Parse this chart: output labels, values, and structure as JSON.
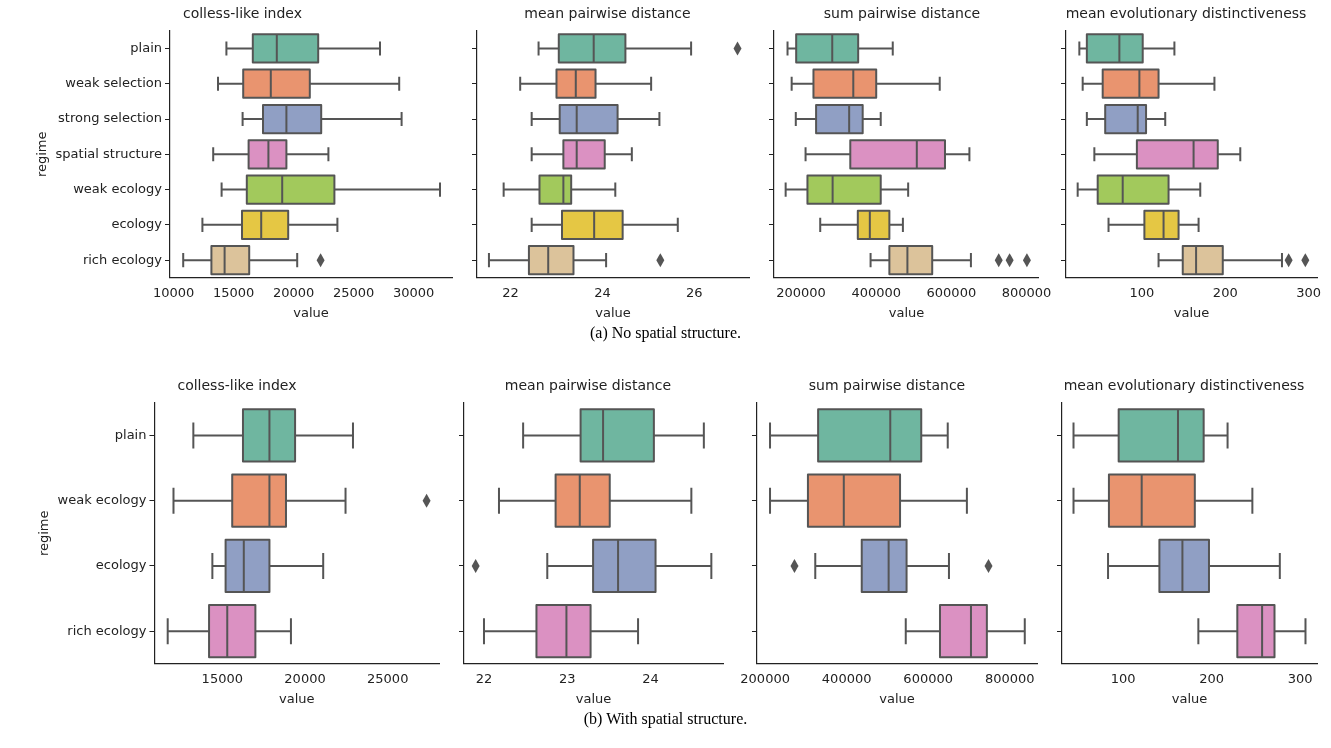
{
  "chart_data": [
    {
      "type": "box",
      "orientation": "horizontal",
      "title": "colless-like index",
      "xlabel": "value",
      "ylabel": "regime",
      "categories": [
        "plain",
        "weak selection",
        "strong selection",
        "spatial structure",
        "weak ecology",
        "ecology",
        "rich ecology"
      ],
      "colors": [
        "#6fb6a0",
        "#e9946f",
        "#909fc4",
        "#db91c2",
        "#a2c95c",
        "#e5c744",
        "#dcc39b"
      ],
      "xlim": [
        9700,
        33200
      ],
      "xticks": [
        10000,
        15000,
        20000,
        25000,
        30000
      ],
      "annotations": [
        "(a) No spatial structure."
      ],
      "boxes": [
        {
          "low": 14400,
          "q1": 16600,
          "median": 18600,
          "q3": 22050,
          "high": 27200
        },
        {
          "low": 13700,
          "q1": 15800,
          "median": 18100,
          "q3": 21350,
          "high": 28800
        },
        {
          "low": 15750,
          "q1": 17450,
          "median": 19400,
          "q3": 22300,
          "high": 29000
        },
        {
          "low": 13300,
          "q1": 16250,
          "median": 17900,
          "q3": 19400,
          "high": 22900
        },
        {
          "low": 14000,
          "q1": 16100,
          "median": 19050,
          "q3": 23400,
          "high": 32200
        },
        {
          "low": 12400,
          "q1": 15700,
          "median": 17300,
          "q3": 19550,
          "high": 23650
        },
        {
          "low": 10800,
          "q1": 13150,
          "median": 14250,
          "q3": 16300,
          "high": 20300,
          "outliers": [
            22250
          ]
        }
      ]
    },
    {
      "type": "box",
      "orientation": "horizontal",
      "title": "mean pairwise distance",
      "xlabel": "value",
      "categories": [
        null,
        null,
        null,
        null,
        null,
        null,
        null
      ],
      "colors": [
        "#6fb6a0",
        "#e9946f",
        "#909fc4",
        "#db91c2",
        "#a2c95c",
        "#e5c744",
        "#dcc39b"
      ],
      "xlim": [
        21.27,
        27.19
      ],
      "xticks": [
        22,
        24,
        26
      ],
      "boxes": [
        {
          "low": 22.61,
          "q1": 23.05,
          "median": 23.81,
          "q3": 24.5,
          "high": 25.93,
          "outliers": [
            26.94
          ]
        },
        {
          "low": 22.21,
          "q1": 23.0,
          "median": 23.42,
          "q3": 23.85,
          "high": 25.06
        },
        {
          "low": 22.46,
          "q1": 23.07,
          "median": 23.44,
          "q3": 24.33,
          "high": 25.24
        },
        {
          "low": 22.46,
          "q1": 23.15,
          "median": 23.44,
          "q3": 24.05,
          "high": 24.64
        },
        {
          "low": 21.85,
          "q1": 22.63,
          "median": 23.15,
          "q3": 23.32,
          "high": 24.28
        },
        {
          "low": 22.46,
          "q1": 23.12,
          "median": 23.82,
          "q3": 24.44,
          "high": 25.64
        },
        {
          "low": 21.53,
          "q1": 22.4,
          "median": 22.82,
          "q3": 23.37,
          "high": 24.08,
          "outliers": [
            25.26
          ]
        }
      ]
    },
    {
      "type": "box",
      "orientation": "horizontal",
      "title": "sum pairwise distance",
      "xlabel": "value",
      "categories": [
        null,
        null,
        null,
        null,
        null,
        null,
        null
      ],
      "colors": [
        "#6fb6a0",
        "#e9946f",
        "#909fc4",
        "#db91c2",
        "#a2c95c",
        "#e5c744",
        "#dcc39b"
      ],
      "xlim": [
        128000,
        833000
      ],
      "xticks": [
        200000,
        400000,
        600000,
        800000
      ],
      "boxes": [
        {
          "low": 164000,
          "q1": 187000,
          "median": 283000,
          "q3": 352000,
          "high": 444000
        },
        {
          "low": 175000,
          "q1": 233000,
          "median": 339000,
          "q3": 400000,
          "high": 569000
        },
        {
          "low": 186000,
          "q1": 240000,
          "median": 328000,
          "q3": 364000,
          "high": 412000
        },
        {
          "low": 212000,
          "q1": 331000,
          "median": 508000,
          "q3": 583000,
          "high": 648000
        },
        {
          "low": 159000,
          "q1": 217000,
          "median": 284000,
          "q3": 412000,
          "high": 485000
        },
        {
          "low": 251000,
          "q1": 351000,
          "median": 383000,
          "q3": 435000,
          "high": 471000
        },
        {
          "low": 385000,
          "q1": 435000,
          "median": 483000,
          "q3": 549000,
          "high": 652000,
          "outliers": [
            726000,
            755000,
            801000
          ]
        }
      ]
    },
    {
      "type": "box",
      "orientation": "horizontal",
      "title": "mean evolutionary distinctiveness",
      "xlabel": "value",
      "categories": [
        null,
        null,
        null,
        null,
        null,
        null,
        null
      ],
      "colors": [
        "#6fb6a0",
        "#e9946f",
        "#909fc4",
        "#db91c2",
        "#a2c95c",
        "#e5c744",
        "#dcc39b"
      ],
      "xlim": [
        9,
        310
      ],
      "xticks": [
        100,
        200,
        300
      ],
      "boxes": [
        {
          "low": 25,
          "q1": 34,
          "median": 73,
          "q3": 101,
          "high": 139
        },
        {
          "low": 29,
          "q1": 53,
          "median": 97,
          "q3": 120,
          "high": 187
        },
        {
          "low": 34,
          "q1": 56,
          "median": 95,
          "q3": 105,
          "high": 128
        },
        {
          "low": 43,
          "q1": 94,
          "median": 162,
          "q3": 191,
          "high": 218
        },
        {
          "low": 23,
          "q1": 47,
          "median": 77,
          "q3": 132,
          "high": 170
        },
        {
          "low": 60,
          "q1": 103,
          "median": 126,
          "q3": 144,
          "high": 168
        },
        {
          "low": 120,
          "q1": 149,
          "median": 165,
          "q3": 197,
          "high": 268,
          "outliers": [
            276,
            296
          ]
        }
      ]
    },
    {
      "type": "box",
      "orientation": "horizontal",
      "title": "colless-like index",
      "xlabel": "value",
      "ylabel": "regime",
      "categories": [
        "plain",
        "weak ecology",
        "ecology",
        "rich ecology"
      ],
      "colors": [
        "#6fb6a0",
        "#e9946f",
        "#909fc4",
        "#db91c2"
      ],
      "xlim": [
        10900,
        28100
      ],
      "xticks": [
        15000,
        20000,
        25000
      ],
      "annotations": [
        "(b) With spatial structure."
      ],
      "boxes": [
        {
          "low": 13250,
          "q1": 16250,
          "median": 17850,
          "q3": 19400,
          "high": 22900
        },
        {
          "low": 12050,
          "q1": 15600,
          "median": 17850,
          "q3": 18850,
          "high": 22450,
          "outliers": [
            27350
          ]
        },
        {
          "low": 14400,
          "q1": 15200,
          "median": 16300,
          "q3": 17850,
          "high": 21100
        },
        {
          "low": 11700,
          "q1": 14200,
          "median": 15300,
          "q3": 17000,
          "high": 19150
        }
      ]
    },
    {
      "type": "box",
      "orientation": "horizontal",
      "title": "mean pairwise distance",
      "xlabel": "value",
      "categories": [
        null,
        null,
        null,
        null
      ],
      "colors": [
        "#6fb6a0",
        "#e9946f",
        "#909fc4",
        "#db91c2"
      ],
      "xlim": [
        21.76,
        24.87
      ],
      "xticks": [
        22,
        23,
        24
      ],
      "boxes": [
        {
          "low": 22.47,
          "q1": 23.16,
          "median": 23.43,
          "q3": 24.04,
          "high": 24.64
        },
        {
          "low": 22.18,
          "q1": 22.86,
          "median": 23.15,
          "q3": 23.51,
          "high": 24.49
        },
        {
          "low": 22.76,
          "q1": 23.31,
          "median": 23.61,
          "q3": 24.06,
          "high": 24.73,
          "outliers": [
            21.9
          ]
        },
        {
          "low": 22.0,
          "q1": 22.63,
          "median": 22.99,
          "q3": 23.28,
          "high": 23.85
        }
      ]
    },
    {
      "type": "box",
      "orientation": "horizontal",
      "title": "sum pairwise distance",
      "xlabel": "value",
      "categories": [
        null,
        null,
        null,
        null
      ],
      "colors": [
        "#6fb6a0",
        "#e9946f",
        "#909fc4",
        "#db91c2"
      ],
      "xlim": [
        180000,
        867000
      ],
      "xticks": [
        200000,
        400000,
        600000,
        800000
      ],
      "boxes": [
        {
          "low": 212000,
          "q1": 330000,
          "median": 507000,
          "q3": 583000,
          "high": 648000
        },
        {
          "low": 212000,
          "q1": 305000,
          "median": 393000,
          "q3": 531000,
          "high": 695000
        },
        {
          "low": 323000,
          "q1": 437000,
          "median": 503000,
          "q3": 547000,
          "high": 651000,
          "outliers": [
            272000,
            748000
          ]
        },
        {
          "low": 545000,
          "q1": 629000,
          "median": 705000,
          "q3": 744000,
          "high": 837000
        }
      ]
    },
    {
      "type": "box",
      "orientation": "horizontal",
      "title": "mean evolutionary distinctiveness",
      "xlabel": "value",
      "categories": [
        null,
        null,
        null,
        null
      ],
      "colors": [
        "#6fb6a0",
        "#e9946f",
        "#909fc4",
        "#db91c2"
      ],
      "xlim": [
        31,
        319
      ],
      "xticks": [
        100,
        200,
        300
      ],
      "boxes": [
        {
          "low": 44,
          "q1": 95,
          "median": 162,
          "q3": 191,
          "high": 218
        },
        {
          "low": 44,
          "q1": 84,
          "median": 121,
          "q3": 181,
          "high": 246
        },
        {
          "low": 83,
          "q1": 141,
          "median": 167,
          "q3": 197,
          "high": 277
        },
        {
          "low": 185,
          "q1": 229,
          "median": 257,
          "q3": 271,
          "high": 306
        }
      ]
    }
  ]
}
